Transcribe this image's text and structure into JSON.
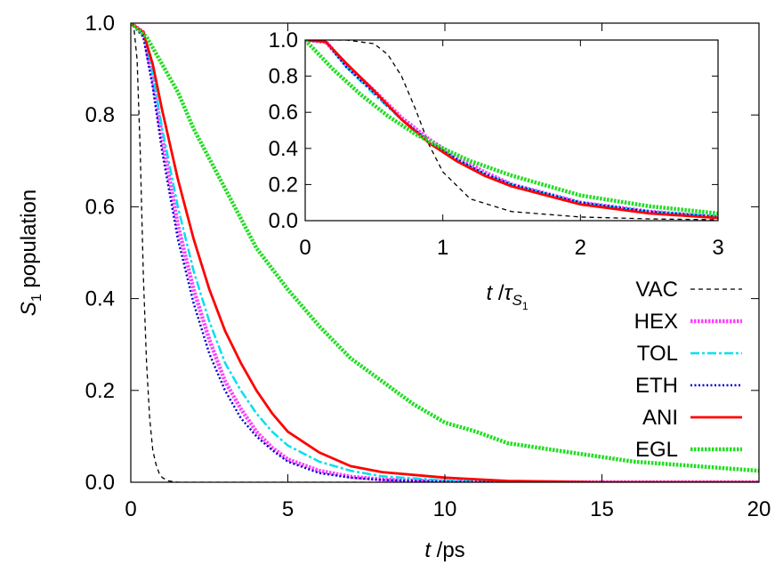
{
  "chart_data": [
    {
      "type": "line",
      "xlabel": "t /ps",
      "ylabel": "S1 population",
      "xlim": [
        0,
        20
      ],
      "ylim": [
        0,
        1.0
      ],
      "xticks": [
        "0",
        "5",
        "10",
        "15",
        "20"
      ],
      "yticks": [
        "0.0",
        "0.2",
        "0.4",
        "0.6",
        "0.8",
        "1.0"
      ],
      "legend_position": "right",
      "series": [
        {
          "name": "VAC",
          "color": "#000000",
          "style": "dashed",
          "x": [
            0,
            0.1,
            0.2,
            0.3,
            0.4,
            0.5,
            0.6,
            0.7,
            0.8,
            0.9,
            1.0,
            1.2,
            1.5,
            20
          ],
          "y": [
            1.0,
            0.99,
            0.92,
            0.72,
            0.45,
            0.26,
            0.14,
            0.07,
            0.04,
            0.02,
            0.01,
            0.003,
            0.0,
            0.0
          ]
        },
        {
          "name": "HEX",
          "color": "#ff40ff",
          "style": "dotted-thick",
          "x": [
            0,
            0.4,
            0.7,
            1.0,
            1.5,
            2.0,
            2.5,
            3.0,
            3.5,
            4.0,
            4.5,
            5.0,
            6.0,
            7.0,
            8.0,
            10.0,
            12.0,
            15.0,
            20.0
          ],
          "y": [
            1.0,
            0.98,
            0.88,
            0.75,
            0.56,
            0.42,
            0.31,
            0.22,
            0.16,
            0.11,
            0.075,
            0.05,
            0.025,
            0.012,
            0.006,
            0.002,
            0.0,
            0.0,
            0.0
          ]
        },
        {
          "name": "TOL",
          "color": "#00e0f0",
          "style": "dashdot",
          "x": [
            0,
            0.4,
            0.7,
            1.0,
            1.5,
            2.0,
            2.5,
            3.0,
            3.5,
            4.0,
            4.5,
            5.0,
            6.0,
            7.0,
            8.0,
            10.0,
            12.0,
            15.0,
            20.0
          ],
          "y": [
            1.0,
            0.98,
            0.89,
            0.77,
            0.6,
            0.46,
            0.35,
            0.26,
            0.2,
            0.15,
            0.11,
            0.08,
            0.045,
            0.025,
            0.013,
            0.004,
            0.0,
            0.0,
            0.0
          ]
        },
        {
          "name": "ETH",
          "color": "#0000d0",
          "style": "dotted",
          "x": [
            0,
            0.4,
            0.7,
            1.0,
            1.5,
            2.0,
            2.5,
            3.0,
            3.5,
            4.0,
            4.5,
            5.0,
            6.0,
            7.0,
            8.0,
            10.0,
            12.0,
            15.0,
            20.0
          ],
          "y": [
            1.0,
            0.97,
            0.86,
            0.72,
            0.53,
            0.39,
            0.28,
            0.2,
            0.14,
            0.1,
            0.07,
            0.045,
            0.02,
            0.01,
            0.005,
            0.001,
            0.0,
            0.0,
            0.0
          ]
        },
        {
          "name": "ANI",
          "color": "#ff0000",
          "style": "solid",
          "x": [
            0,
            0.4,
            0.7,
            1.0,
            1.5,
            2.0,
            2.5,
            3.0,
            3.5,
            4.0,
            4.5,
            5.0,
            6.0,
            7.0,
            8.0,
            10.0,
            12.0,
            15.0,
            20.0
          ],
          "y": [
            1.0,
            0.98,
            0.91,
            0.81,
            0.66,
            0.53,
            0.42,
            0.33,
            0.26,
            0.2,
            0.15,
            0.11,
            0.065,
            0.035,
            0.022,
            0.01,
            0.003,
            0.0,
            0.0
          ]
        },
        {
          "name": "EGL",
          "color": "#22dd22",
          "style": "dotted-thick",
          "x": [
            0,
            0.5,
            1.0,
            1.5,
            2.0,
            3.0,
            4.0,
            5.0,
            6.0,
            7.0,
            8.0,
            9.0,
            10.0,
            11.0,
            12.0,
            14.0,
            16.0,
            18.0,
            20.0
          ],
          "y": [
            1.0,
            0.97,
            0.91,
            0.85,
            0.77,
            0.64,
            0.51,
            0.42,
            0.34,
            0.27,
            0.22,
            0.17,
            0.13,
            0.11,
            0.085,
            0.065,
            0.045,
            0.035,
            0.025
          ]
        }
      ]
    },
    {
      "type": "line",
      "xlabel": "t /τS1",
      "ylabel": "",
      "xlim": [
        0,
        3
      ],
      "ylim": [
        0,
        1.0
      ],
      "xticks": [
        "0",
        "1",
        "2",
        "3"
      ],
      "yticks": [
        "0.0",
        "0.2",
        "0.4",
        "0.6",
        "0.8",
        "1.0"
      ],
      "series": [
        {
          "name": "VAC",
          "color": "#000000",
          "style": "dashed",
          "x": [
            0,
            0.3,
            0.5,
            0.6,
            0.7,
            0.8,
            0.9,
            1.0,
            1.2,
            1.5,
            2.0,
            2.5,
            3.0
          ],
          "y": [
            1.0,
            1.0,
            0.98,
            0.92,
            0.8,
            0.62,
            0.42,
            0.27,
            0.12,
            0.05,
            0.02,
            0.01,
            0.005
          ]
        },
        {
          "name": "HEX",
          "color": "#ff40ff",
          "style": "dotted-thick",
          "x": [
            0,
            0.15,
            0.3,
            0.5,
            0.7,
            0.9,
            1.1,
            1.3,
            1.5,
            2.0,
            2.5,
            3.0
          ],
          "y": [
            1.0,
            0.99,
            0.86,
            0.72,
            0.57,
            0.45,
            0.35,
            0.27,
            0.2,
            0.1,
            0.05,
            0.02
          ]
        },
        {
          "name": "TOL",
          "color": "#00e0f0",
          "style": "dashdot",
          "x": [
            0,
            0.15,
            0.3,
            0.5,
            0.7,
            0.9,
            1.1,
            1.3,
            1.5,
            2.0,
            2.5,
            3.0
          ],
          "y": [
            1.0,
            0.99,
            0.85,
            0.7,
            0.56,
            0.44,
            0.34,
            0.26,
            0.2,
            0.1,
            0.05,
            0.025
          ]
        },
        {
          "name": "ETH",
          "color": "#0000d0",
          "style": "dotted",
          "x": [
            0,
            0.15,
            0.3,
            0.5,
            0.7,
            0.9,
            1.1,
            1.3,
            1.5,
            2.0,
            2.5,
            3.0
          ],
          "y": [
            1.0,
            0.99,
            0.85,
            0.71,
            0.56,
            0.44,
            0.34,
            0.26,
            0.2,
            0.1,
            0.05,
            0.02
          ]
        },
        {
          "name": "ANI",
          "color": "#ff0000",
          "style": "solid",
          "x": [
            0,
            0.15,
            0.3,
            0.5,
            0.7,
            0.9,
            1.1,
            1.3,
            1.5,
            2.0,
            2.5,
            3.0
          ],
          "y": [
            1.0,
            0.99,
            0.87,
            0.72,
            0.56,
            0.43,
            0.33,
            0.25,
            0.19,
            0.09,
            0.04,
            0.015
          ]
        },
        {
          "name": "EGL",
          "color": "#22dd22",
          "style": "dotted-thick",
          "x": [
            0,
            0.2,
            0.4,
            0.6,
            0.8,
            1.0,
            1.2,
            1.5,
            2.0,
            2.5,
            3.0
          ],
          "y": [
            1.0,
            0.84,
            0.7,
            0.58,
            0.48,
            0.4,
            0.33,
            0.25,
            0.14,
            0.08,
            0.04
          ]
        }
      ]
    }
  ]
}
